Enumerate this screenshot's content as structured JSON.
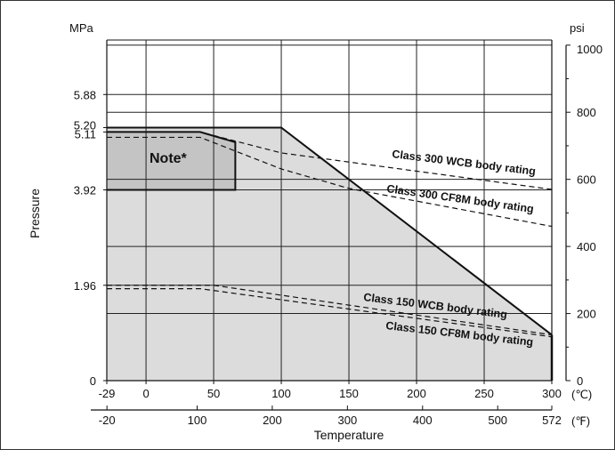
{
  "chart_data": {
    "type": "line",
    "title": "",
    "xlabel": "Temperature",
    "ylabel": "Pressure",
    "x_unit_celsius": "(℃)",
    "x_unit_fahrenheit": "(℉)",
    "y_unit_left": "MPa",
    "y_unit_right": "psi",
    "xlim_celsius": [
      -29,
      300
    ],
    "ylim_mpa": [
      0,
      7.0
    ],
    "x_ticks_celsius": [
      "-29",
      "0",
      "50",
      "100",
      "150",
      "200",
      "250",
      "300"
    ],
    "x_ticks_fahrenheit": [
      {
        "label": "-20",
        "value": -20
      },
      {
        "label": "100",
        "value": 100
      },
      {
        "label": "200",
        "value": 200
      },
      {
        "label": "300",
        "value": 300
      },
      {
        "label": "400",
        "value": 400
      },
      {
        "label": "500",
        "value": 500
      },
      {
        "label": "572",
        "value": 572
      }
    ],
    "y_ticks_mpa": [
      "0",
      "1.96",
      "3.92",
      "5.11",
      "5.20",
      "5.88"
    ],
    "y_ticks_psi": [
      {
        "label": "0",
        "value": 0
      },
      {
        "label": "200",
        "value": 200
      },
      {
        "label": "400",
        "value": 400
      },
      {
        "label": "600",
        "value": 600
      },
      {
        "label": "800",
        "value": 800
      },
      {
        "label": "1000",
        "value": 1000
      }
    ],
    "grid": true,
    "series": [
      {
        "name": "",
        "style": "solid",
        "fill": "#dcdcdc",
        "x": [
          -29,
          100,
          300
        ],
        "y": [
          5.2,
          5.2,
          0.94
        ]
      },
      {
        "name": "Note*",
        "style": "solid",
        "fill": "#c4c4c4",
        "x": [
          -29,
          40,
          66,
          66,
          -29
        ],
        "y": [
          5.11,
          5.11,
          4.9,
          3.92,
          3.92
        ]
      },
      {
        "name": "Class 300 WCB body rating",
        "style": "dashed",
        "x": [
          -29,
          40,
          100,
          300
        ],
        "y": [
          5.11,
          5.11,
          4.68,
          3.93
        ]
      },
      {
        "name": "Class 300 CF8M body rating",
        "style": "dashed",
        "x": [
          -29,
          40,
          100,
          150,
          300
        ],
        "y": [
          5.0,
          5.0,
          4.35,
          3.95,
          3.17
        ]
      },
      {
        "name": "Class 150 WCB body rating",
        "style": "dashed",
        "x": [
          -29,
          50,
          300
        ],
        "y": [
          1.96,
          1.96,
          0.94
        ]
      },
      {
        "name": "Class 150 CF8M body rating",
        "style": "dashed",
        "x": [
          -29,
          40,
          300
        ],
        "y": [
          1.89,
          1.89,
          0.9
        ]
      }
    ],
    "annotations": {
      "note": "Note*",
      "c300wcb": "Class 300 WCB body rating",
      "c300cf8m": "Class 300 CF8M body rating",
      "c150wcb": "Class 150 WCB body rating",
      "c150cf8m": "Class 150 CF8M body rating"
    }
  }
}
